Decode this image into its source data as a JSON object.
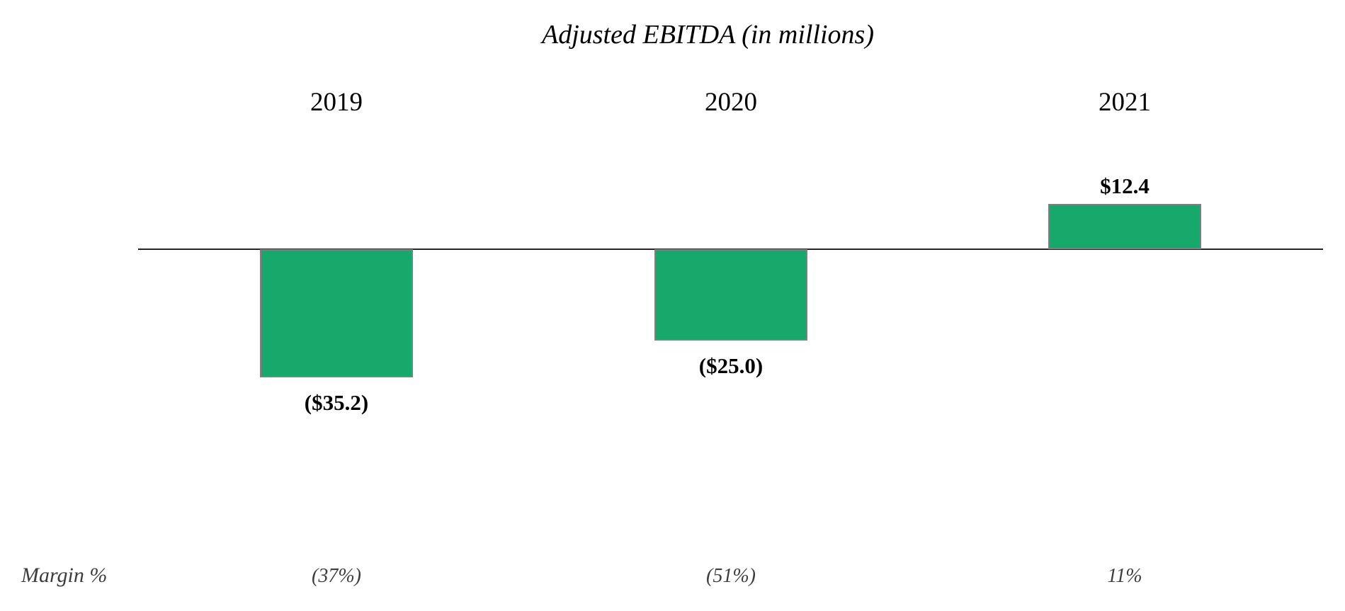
{
  "chart_data": {
    "type": "bar",
    "title": "Adjusted EBITDA (in millions)",
    "categories": [
      "2019",
      "2020",
      "2021"
    ],
    "series": [
      {
        "name": "Adjusted EBITDA",
        "values": [
          -35.2,
          -25.0,
          12.4
        ]
      }
    ],
    "value_labels": [
      "($35.2)",
      "($25.0)",
      "$12.4"
    ],
    "margin_row": {
      "label": "Margin %",
      "values": [
        "(37%)",
        "(51%)",
        "11%"
      ]
    },
    "colors": {
      "bar_fill": "#17A86C",
      "bar_border": "#7F7F7F",
      "axis_line": "#262626",
      "text": "#000000",
      "margin_text": "#3D3D3D"
    },
    "layout_hints": {
      "legend": "none",
      "grid": false,
      "baseline": 0,
      "value_label_position": "outside-end"
    }
  }
}
